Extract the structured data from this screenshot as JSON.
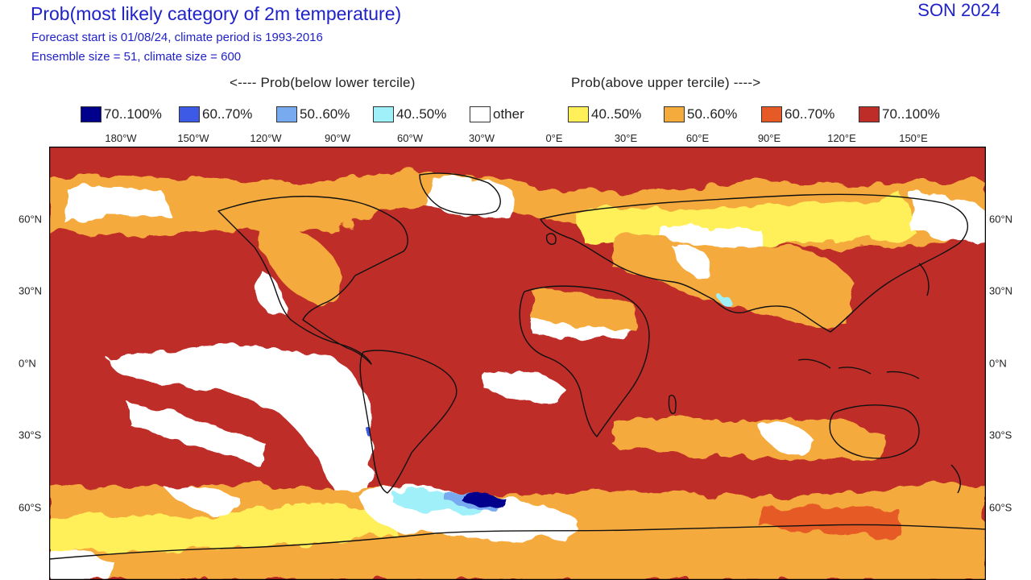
{
  "title": "Prob(most likely category of 2m temperature)",
  "season": "SON 2024",
  "subtitle1": "Forecast start is 01/08/24, climate period is 1993-2016",
  "subtitle2": "Ensemble size = 51, climate size = 600",
  "header_below": "<---- Prob(below lower tercile)",
  "header_above": "Prob(above upper tercile) ---->",
  "legend": [
    {
      "label": "70..100%",
      "color": "#00008c"
    },
    {
      "label": "60..70%",
      "color": "#3c5ae6"
    },
    {
      "label": "50..60%",
      "color": "#78aaf0"
    },
    {
      "label": "40..50%",
      "color": "#a0f0fa"
    },
    {
      "label": "other",
      "color": "#ffffff"
    },
    {
      "label": "40..50%",
      "color": "#fff05a"
    },
    {
      "label": "50..60%",
      "color": "#f5aa3c"
    },
    {
      "label": "60..70%",
      "color": "#e65a28"
    },
    {
      "label": "70..100%",
      "color": "#be2d28"
    }
  ],
  "lon_labels": [
    "180°W",
    "150°W",
    "120°W",
    "90°W",
    "60°W",
    "30°W",
    "0°E",
    "30°E",
    "60°E",
    "90°E",
    "120°E",
    "150°E"
  ],
  "lat_labels": [
    "60°N",
    "30°N",
    "0°N",
    "30°S",
    "60°S"
  ]
}
